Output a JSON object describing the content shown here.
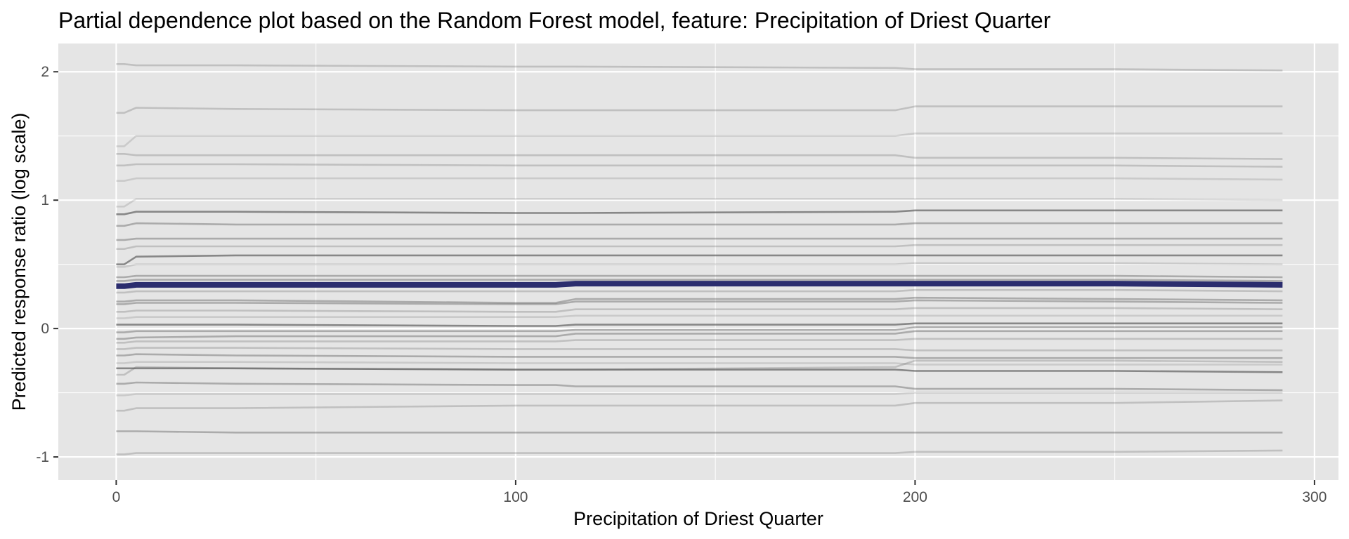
{
  "chart_data": {
    "type": "line",
    "title": "Partial dependence plot based on the Random Forest model, feature: Precipitation of Driest Quarter",
    "xlabel": "Precipitation of Driest Quarter",
    "ylabel": "Predicted response ratio (log scale)",
    "xlim": [
      -14.5,
      306
    ],
    "ylim": [
      -1.18,
      2.22
    ],
    "x_ticks": [
      0,
      100,
      200,
      300
    ],
    "x_tick_labels": [
      "0",
      "100",
      "200",
      "300"
    ],
    "y_ticks": [
      -1,
      0,
      1,
      2
    ],
    "y_tick_labels": [
      "-1",
      "0",
      "1",
      "2"
    ],
    "grid": true,
    "legend": "none",
    "colors": {
      "panel_background": "#e5e5e5",
      "grid_line": "#ffffff",
      "individual_curve": "#555555",
      "average_curve": "#2b2d6e"
    },
    "x": [
      0,
      2,
      5,
      30,
      100,
      110,
      115,
      195,
      200,
      250,
      292
    ],
    "average": {
      "values": [
        0.33,
        0.33,
        0.34,
        0.34,
        0.34,
        0.34,
        0.35,
        0.35,
        0.35,
        0.35,
        0.34
      ]
    },
    "series": [
      {
        "opacity": 0.65,
        "values": [
          0.89,
          0.89,
          0.91,
          0.91,
          0.9,
          0.9,
          0.9,
          0.91,
          0.92,
          0.92,
          0.92
        ]
      },
      {
        "opacity": 0.65,
        "values": [
          0.5,
          0.5,
          0.56,
          0.57,
          0.57,
          0.57,
          0.57,
          0.57,
          0.57,
          0.57,
          0.57
        ]
      },
      {
        "opacity": 0.65,
        "values": [
          0.03,
          0.03,
          0.03,
          0.03,
          0.02,
          0.02,
          0.03,
          0.03,
          0.04,
          0.04,
          0.04
        ]
      },
      {
        "opacity": 0.65,
        "values": [
          -0.31,
          -0.31,
          -0.31,
          -0.31,
          -0.32,
          -0.32,
          -0.32,
          -0.32,
          -0.33,
          -0.33,
          -0.34
        ]
      },
      {
        "opacity": 0.4,
        "values": [
          0.8,
          0.8,
          0.82,
          0.81,
          0.81,
          0.81,
          0.81,
          0.81,
          0.82,
          0.82,
          0.82
        ]
      },
      {
        "opacity": 0.4,
        "values": [
          0.69,
          0.69,
          0.7,
          0.7,
          0.7,
          0.7,
          0.7,
          0.7,
          0.7,
          0.7,
          0.7
        ]
      },
      {
        "opacity": 0.4,
        "values": [
          0.4,
          0.4,
          0.41,
          0.41,
          0.41,
          0.41,
          0.41,
          0.41,
          0.41,
          0.41,
          0.4
        ]
      },
      {
        "opacity": 0.4,
        "values": [
          0.37,
          0.37,
          0.38,
          0.38,
          0.38,
          0.38,
          0.38,
          0.38,
          0.38,
          0.38,
          0.37
        ]
      },
      {
        "opacity": 0.4,
        "values": [
          0.21,
          0.21,
          0.22,
          0.22,
          0.2,
          0.2,
          0.23,
          0.23,
          0.24,
          0.23,
          0.22
        ]
      },
      {
        "opacity": 0.4,
        "values": [
          0.19,
          0.19,
          0.2,
          0.2,
          0.19,
          0.19,
          0.21,
          0.21,
          0.22,
          0.21,
          0.2
        ]
      },
      {
        "opacity": 0.4,
        "values": [
          -0.03,
          -0.03,
          -0.02,
          -0.02,
          -0.02,
          -0.02,
          -0.01,
          -0.01,
          0.01,
          0.01,
          0.01
        ]
      },
      {
        "opacity": 0.4,
        "values": [
          -0.08,
          -0.08,
          -0.07,
          -0.06,
          -0.06,
          -0.06,
          -0.04,
          -0.04,
          -0.02,
          -0.02,
          -0.02
        ]
      },
      {
        "opacity": 0.4,
        "values": [
          -0.21,
          -0.21,
          -0.2,
          -0.21,
          -0.22,
          -0.22,
          -0.22,
          -0.22,
          -0.23,
          -0.23,
          -0.23
        ]
      },
      {
        "opacity": 0.4,
        "values": [
          -0.43,
          -0.43,
          -0.42,
          -0.43,
          -0.44,
          -0.44,
          -0.45,
          -0.45,
          -0.47,
          -0.47,
          -0.48
        ]
      },
      {
        "opacity": 0.4,
        "values": [
          -0.8,
          -0.8,
          -0.8,
          -0.81,
          -0.81,
          -0.81,
          -0.81,
          -0.81,
          -0.81,
          -0.81,
          -0.81
        ]
      },
      {
        "opacity": 0.25,
        "values": [
          1.27,
          1.27,
          1.28,
          1.28,
          1.27,
          1.27,
          1.27,
          1.27,
          1.27,
          1.27,
          1.26
        ]
      },
      {
        "opacity": 0.25,
        "values": [
          1.36,
          1.36,
          1.35,
          1.35,
          1.35,
          1.35,
          1.35,
          1.35,
          1.33,
          1.33,
          1.32
        ]
      },
      {
        "opacity": 0.25,
        "values": [
          1.68,
          1.68,
          1.72,
          1.71,
          1.7,
          1.7,
          1.7,
          1.7,
          1.73,
          1.73,
          1.73
        ]
      },
      {
        "opacity": 0.25,
        "values": [
          2.06,
          2.06,
          2.05,
          2.05,
          2.04,
          2.04,
          2.04,
          2.03,
          2.02,
          2.02,
          2.01
        ]
      },
      {
        "opacity": 0.25,
        "values": [
          0.62,
          0.62,
          0.64,
          0.64,
          0.64,
          0.64,
          0.64,
          0.64,
          0.65,
          0.65,
          0.65
        ]
      },
      {
        "opacity": 0.25,
        "values": [
          0.28,
          0.28,
          0.29,
          0.29,
          0.29,
          0.29,
          0.29,
          0.29,
          0.3,
          0.3,
          0.29
        ]
      },
      {
        "opacity": 0.25,
        "values": [
          0.13,
          0.13,
          0.14,
          0.14,
          0.13,
          0.13,
          0.15,
          0.15,
          0.16,
          0.16,
          0.15
        ]
      },
      {
        "opacity": 0.25,
        "values": [
          -0.11,
          -0.11,
          -0.1,
          -0.1,
          -0.1,
          -0.1,
          -0.09,
          -0.09,
          -0.08,
          -0.08,
          -0.08
        ]
      },
      {
        "opacity": 0.25,
        "values": [
          -0.16,
          -0.16,
          -0.15,
          -0.15,
          -0.16,
          -0.16,
          -0.16,
          -0.16,
          -0.17,
          -0.17,
          -0.17
        ]
      },
      {
        "opacity": 0.25,
        "values": [
          -0.36,
          -0.36,
          -0.3,
          -0.31,
          -0.32,
          -0.32,
          -0.32,
          -0.3,
          -0.25,
          -0.25,
          -0.26
        ]
      },
      {
        "opacity": 0.25,
        "values": [
          -0.64,
          -0.64,
          -0.62,
          -0.62,
          -0.6,
          -0.6,
          -0.6,
          -0.6,
          -0.58,
          -0.58,
          -0.56
        ]
      },
      {
        "opacity": 0.25,
        "values": [
          -0.98,
          -0.98,
          -0.97,
          -0.97,
          -0.97,
          -0.97,
          -0.97,
          -0.97,
          -0.96,
          -0.96,
          -0.95
        ]
      },
      {
        "opacity": 0.18,
        "values": [
          1.42,
          1.42,
          1.5,
          1.5,
          1.5,
          1.5,
          1.5,
          1.5,
          1.52,
          1.52,
          1.52
        ]
      },
      {
        "opacity": 0.18,
        "values": [
          1.15,
          1.15,
          1.17,
          1.17,
          1.17,
          1.17,
          1.17,
          1.17,
          1.17,
          1.17,
          1.16
        ]
      },
      {
        "opacity": 0.18,
        "values": [
          0.95,
          0.95,
          1.01,
          1.01,
          1.01,
          1.01,
          1.01,
          1.01,
          1.01,
          1.01,
          1.0
        ]
      },
      {
        "opacity": 0.18,
        "values": [
          0.48,
          0.48,
          0.5,
          0.5,
          0.5,
          0.5,
          0.5,
          0.5,
          0.51,
          0.51,
          0.5
        ]
      },
      {
        "opacity": 0.18,
        "values": [
          0.08,
          0.08,
          0.09,
          0.09,
          0.09,
          0.09,
          0.1,
          0.1,
          0.1,
          0.1,
          0.1
        ]
      },
      {
        "opacity": 0.18,
        "values": [
          -0.27,
          -0.27,
          -0.26,
          -0.26,
          -0.27,
          -0.27,
          -0.27,
          -0.27,
          -0.28,
          -0.28,
          -0.28
        ]
      },
      {
        "opacity": 0.18,
        "values": [
          -0.52,
          -0.52,
          -0.51,
          -0.51,
          -0.51,
          -0.51,
          -0.51,
          -0.51,
          -0.5,
          -0.5,
          -0.5
        ]
      }
    ]
  }
}
